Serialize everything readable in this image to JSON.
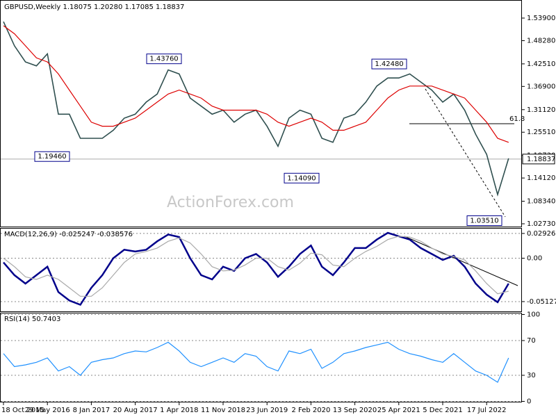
{
  "chart_data": [
    {
      "type": "line",
      "title": "GBPUSD,Weekly  1.18075 1.20280 1.17085 1.18837",
      "watermark": "ActionForex.com",
      "categories": [
        "18 Oct 2015",
        null,
        null,
        null,
        "29 May 2016",
        null,
        null,
        null,
        "8 Jan 2017",
        null,
        null,
        null,
        "20 Aug 2017",
        null,
        null,
        null,
        "1 Apr 2018",
        null,
        null,
        null,
        "11 Nov 2018",
        null,
        null,
        null,
        "23 Jun 2019",
        null,
        null,
        null,
        "2 Feb 2020",
        null,
        null,
        null,
        "13 Sep 2020",
        null,
        null,
        null,
        "25 Apr 2021",
        null,
        null,
        null,
        "5 Dec 2021",
        null,
        null,
        null,
        "17 Jul 2022",
        null,
        null
      ],
      "series": [
        {
          "color": "#2f4f4f",
          "values": [
            1.53,
            1.47,
            1.43,
            1.42,
            1.45,
            1.3,
            1.3,
            1.24,
            1.24,
            1.24,
            1.26,
            1.29,
            1.3,
            1.33,
            1.35,
            1.41,
            1.4,
            1.34,
            1.32,
            1.3,
            1.31,
            1.28,
            1.3,
            1.31,
            1.27,
            1.22,
            1.29,
            1.31,
            1.3,
            1.24,
            1.23,
            1.29,
            1.3,
            1.33,
            1.37,
            1.39,
            1.39,
            1.4,
            1.38,
            1.36,
            1.33,
            1.35,
            1.31,
            1.25,
            1.2,
            1.1,
            1.19
          ]
        },
        {
          "color": "#dd0000",
          "values": [
            1.52,
            1.5,
            1.47,
            1.44,
            1.43,
            1.4,
            1.36,
            1.32,
            1.28,
            1.27,
            1.27,
            1.28,
            1.29,
            1.31,
            1.33,
            1.35,
            1.36,
            1.35,
            1.34,
            1.32,
            1.31,
            1.31,
            1.31,
            1.31,
            1.3,
            1.28,
            1.27,
            1.28,
            1.29,
            1.28,
            1.26,
            1.26,
            1.27,
            1.28,
            1.31,
            1.34,
            1.36,
            1.37,
            1.37,
            1.37,
            1.36,
            1.35,
            1.34,
            1.31,
            1.28,
            1.24,
            1.23
          ]
        }
      ],
      "ylim": [
        1.0204,
        1.5805
      ],
      "yticks": [
        {
          "value": 1.539,
          "label": "1.53900"
        },
        {
          "value": 1.4828,
          "label": "1.48280"
        },
        {
          "value": 1.4251,
          "label": "1.42510"
        },
        {
          "value": 1.369,
          "label": "1.36900"
        },
        {
          "value": 1.3112,
          "label": "1.31120"
        },
        {
          "value": 1.2551,
          "label": "1.25510"
        },
        {
          "value": 1.1973,
          "label": "1.19730"
        },
        {
          "value": 1.1412,
          "label": "1.14120"
        },
        {
          "value": 1.0834,
          "label": "1.08340"
        },
        {
          "value": 1.0273,
          "label": "1.02730"
        }
      ],
      "annotations": [
        {
          "value": 1.4376,
          "label": "1.43760"
        },
        {
          "value": 1.1946,
          "label": "1.19460"
        },
        {
          "value": 1.1409,
          "label": "1.14090"
        },
        {
          "value": 1.4248,
          "label": "1.42480"
        },
        {
          "value": 1.0351,
          "label": "1.03510"
        }
      ],
      "fib_label": "61.8",
      "last": {
        "value": 1.18837,
        "label": "1.18837"
      }
    },
    {
      "type": "line",
      "title": "MACD(12,26,9) -0.025247 -0.038576",
      "series": [
        {
          "color": "#00008b",
          "values": [
            -0.005,
            -0.02,
            -0.03,
            -0.02,
            -0.01,
            -0.04,
            -0.05,
            -0.055,
            -0.035,
            -0.02,
            0.0,
            0.01,
            0.008,
            0.01,
            0.02,
            0.028,
            0.025,
            0.0,
            -0.02,
            -0.025,
            -0.01,
            -0.015,
            0.0,
            0.005,
            -0.005,
            -0.022,
            -0.01,
            0.005,
            0.015,
            -0.01,
            -0.02,
            -0.005,
            0.012,
            0.012,
            0.022,
            0.03,
            0.026,
            0.022,
            0.012,
            0.005,
            -0.002,
            0.003,
            -0.01,
            -0.03,
            -0.043,
            -0.052,
            -0.03
          ]
        },
        {
          "color": "#a9a9a9",
          "values": [
            0.0,
            -0.01,
            -0.022,
            -0.025,
            -0.02,
            -0.025,
            -0.035,
            -0.045,
            -0.045,
            -0.035,
            -0.02,
            -0.005,
            0.005,
            0.008,
            0.012,
            0.02,
            0.024,
            0.018,
            0.005,
            -0.01,
            -0.015,
            -0.014,
            -0.008,
            0.0,
            0.0,
            -0.01,
            -0.014,
            -0.006,
            0.006,
            0.004,
            -0.008,
            -0.01,
            0.0,
            0.008,
            0.014,
            0.022,
            0.026,
            0.025,
            0.02,
            0.012,
            0.005,
            0.002,
            -0.002,
            -0.015,
            -0.03,
            -0.042,
            -0.039
          ]
        }
      ],
      "ylim": [
        -0.062,
        0.0341
      ],
      "yticks": [
        0.029261,
        {
          "value": 0,
          "label": "0.00"
        },
        -0.051279
      ],
      "grid": true
    },
    {
      "type": "line",
      "title": "RSI(14) 50.7403",
      "series": [
        {
          "color": "#1e90ff",
          "values": [
            55,
            40,
            42,
            45,
            50,
            35,
            40,
            30,
            45,
            48,
            50,
            55,
            58,
            57,
            62,
            68,
            58,
            45,
            40,
            45,
            50,
            45,
            55,
            52,
            40,
            35,
            58,
            55,
            60,
            38,
            45,
            55,
            58,
            62,
            65,
            68,
            60,
            55,
            52,
            48,
            45,
            55,
            45,
            35,
            30,
            22,
            50
          ]
        }
      ],
      "ylim": [
        0,
        100
      ],
      "yticks": [
        100,
        70,
        30,
        0
      ],
      "grid": true
    }
  ]
}
